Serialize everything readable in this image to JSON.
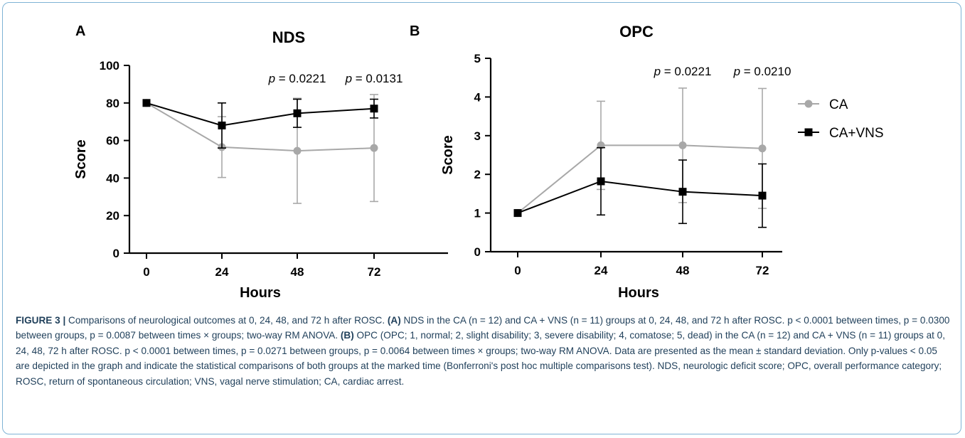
{
  "chart_data": [
    {
      "type": "line",
      "panel": "A",
      "title": "NDS",
      "xlabel": "Hours",
      "ylabel": "Score",
      "categories": [
        "0",
        "24",
        "48",
        "72"
      ],
      "x": [
        0,
        24,
        48,
        72
      ],
      "ylim": [
        0,
        100
      ],
      "yticks": [
        "0",
        "20",
        "40",
        "60",
        "80",
        "100"
      ],
      "series": [
        {
          "name": "CA",
          "marker": "circle",
          "color": "#a8a8a8",
          "values": [
            80,
            56.5,
            54.5,
            56
          ],
          "errors": [
            0,
            16.2,
            28,
            28.5
          ]
        },
        {
          "name": "CA+VNS",
          "marker": "square",
          "color": "#000000",
          "values": [
            80,
            68,
            74.5,
            77
          ],
          "errors": [
            0,
            12,
            7.5,
            5
          ]
        }
      ],
      "annotations": [
        {
          "x": 48,
          "p_symbol": "p",
          "p_text": " = 0.0221"
        },
        {
          "x": 72,
          "p_symbol": "p",
          "p_text": " = 0.0131"
        }
      ],
      "grid": false
    },
    {
      "type": "line",
      "panel": "B",
      "title": "OPC",
      "xlabel": "Hours",
      "ylabel": "Score",
      "categories": [
        "0",
        "24",
        "48",
        "72"
      ],
      "x": [
        0,
        24,
        48,
        72
      ],
      "ylim": [
        0,
        5
      ],
      "yticks": [
        "0",
        "1",
        "2",
        "3",
        "4",
        "5"
      ],
      "series": [
        {
          "name": "CA",
          "marker": "circle",
          "color": "#a8a8a8",
          "values": [
            1,
            2.75,
            2.75,
            2.67
          ],
          "errors": [
            0,
            1.14,
            1.48,
            1.55
          ]
        },
        {
          "name": "CA+VNS",
          "marker": "square",
          "color": "#000000",
          "values": [
            1,
            1.82,
            1.55,
            1.45
          ],
          "errors": [
            0,
            0.87,
            0.82,
            0.82
          ]
        }
      ],
      "annotations": [
        {
          "x": 48,
          "p_symbol": "p",
          "p_text": " = 0.0221"
        },
        {
          "x": 72,
          "p_symbol": "p",
          "p_text": " = 0.0210"
        }
      ],
      "legend": {
        "placement": "right",
        "entries": [
          "CA",
          "CA+VNS"
        ]
      },
      "grid": false
    }
  ],
  "caption": {
    "label": "FIGURE 3 |",
    "lead": " Comparisons of neurological outcomes at 0, 24, 48, and 72 h after ROSC. ",
    "a_label": "(A)",
    "a_text": " NDS in the CA (n = 12) and CA + VNS (n = 11) groups at 0, 24, 48, and 72 h after ROSC. p < 0.0001 between times, p = 0.0300 between groups, p = 0.0087 between times × groups; two-way RM ANOVA. ",
    "b_label": "(B)",
    "b_text": " OPC (OPC; 1, normal; 2, slight disability; 3, severe disability; 4, comatose; 5, dead) in the CA (n = 12) and CA + VNS (n = 11) groups at 0, 24, 48, 72 h after ROSC. p < 0.0001 between times, p = 0.0271 between groups, p = 0.0064 between times × groups; two-way RM ANOVA. Data are presented as the mean ± standard deviation. Only p-values < 0.05 are depicted in the graph and indicate the statistical comparisons of both groups at the marked time (Bonferroni's post hoc multiple comparisons test). NDS, neurologic deficit score; OPC, overall performance category; ROSC, return of spontaneous circulation; VNS, vagal nerve stimulation; CA, cardiac arrest."
  }
}
